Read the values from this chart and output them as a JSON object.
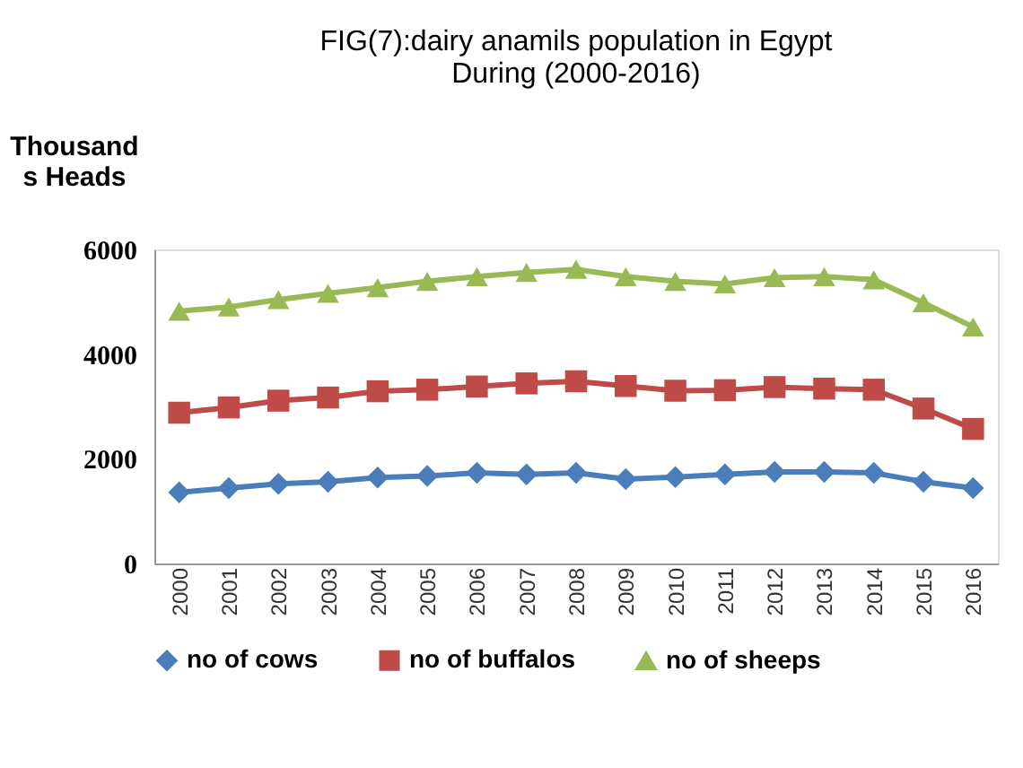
{
  "chart_data": {
    "type": "line",
    "title": "FIG(7):dairy anamils population in Egypt During (2000-2016)",
    "ylabel": "Thousands Heads",
    "categories": [
      "2000",
      "2001",
      "2002",
      "2003",
      "2004",
      "2005",
      "2006",
      "2007",
      "2008",
      "2009",
      "2010",
      "2011",
      "2012",
      "2013",
      "2014",
      "2015",
      "2016"
    ],
    "series": [
      {
        "name": "no of cows",
        "color": "#4a7ebb",
        "marker": "diamond",
        "values": [
          1360,
          1440,
          1520,
          1560,
          1640,
          1670,
          1730,
          1700,
          1730,
          1610,
          1650,
          1700,
          1750,
          1750,
          1730,
          1560,
          1440
        ]
      },
      {
        "name": "no of buffalos",
        "color": "#be4b48",
        "marker": "square",
        "values": [
          2880,
          2980,
          3110,
          3170,
          3290,
          3320,
          3380,
          3440,
          3480,
          3390,
          3300,
          3310,
          3370,
          3340,
          3320,
          2960,
          2570
        ]
      },
      {
        "name": "no of sheeps",
        "color": "#98b954",
        "marker": "triangle",
        "values": [
          4820,
          4900,
          5040,
          5160,
          5270,
          5390,
          5480,
          5560,
          5620,
          5480,
          5390,
          5340,
          5460,
          5480,
          5420,
          4980,
          4520
        ]
      }
    ],
    "ylim": [
      0,
      6000
    ],
    "yticks": [
      0,
      2000,
      4000,
      6000
    ],
    "grid": false,
    "legend": "bottom",
    "line_style": "solid"
  }
}
